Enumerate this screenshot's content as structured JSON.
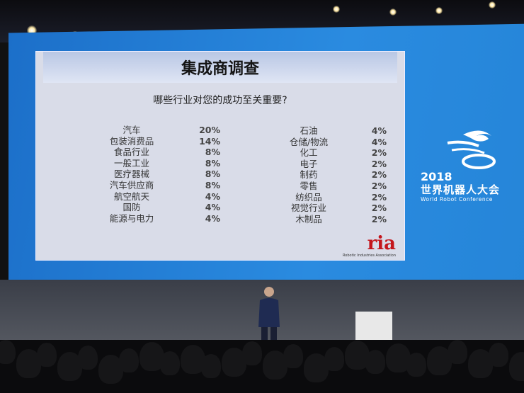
{
  "slide": {
    "title": "集成商调查",
    "question": "哪些行业对您的成功至关重要?",
    "left_items": [
      {
        "label": "汽车",
        "pct": "20%"
      },
      {
        "label": "包装消费品",
        "pct": "14%"
      },
      {
        "label": "食品行业",
        "pct": "8%"
      },
      {
        "label": "一般工业",
        "pct": "8%"
      },
      {
        "label": "医疗器械",
        "pct": "8%"
      },
      {
        "label": "汽车供应商",
        "pct": "8%"
      },
      {
        "label": "航空航天",
        "pct": "4%"
      },
      {
        "label": "国防",
        "pct": "4%"
      },
      {
        "label": "能源与电力",
        "pct": "4%"
      }
    ],
    "right_items": [
      {
        "label": "石油",
        "pct": "4%"
      },
      {
        "label": "仓储/物流",
        "pct": "4%"
      },
      {
        "label": "化工",
        "pct": "2%"
      },
      {
        "label": "电子",
        "pct": "2%"
      },
      {
        "label": "制药",
        "pct": "2%"
      },
      {
        "label": "零售",
        "pct": "2%"
      },
      {
        "label": "纺织品",
        "pct": "2%"
      },
      {
        "label": "视觉行业",
        "pct": "2%"
      },
      {
        "label": "木制品",
        "pct": "2%"
      }
    ],
    "logo": {
      "text": "ria",
      "subtitle": "Robotic Industries Association"
    }
  },
  "conference": {
    "year": "2018",
    "name_cn": "世界机器人大会",
    "name_en": "World Robot Conference"
  },
  "colors": {
    "screen": "#2585d8",
    "slide": "#d9dce8",
    "ria_red": "#c4161c"
  }
}
